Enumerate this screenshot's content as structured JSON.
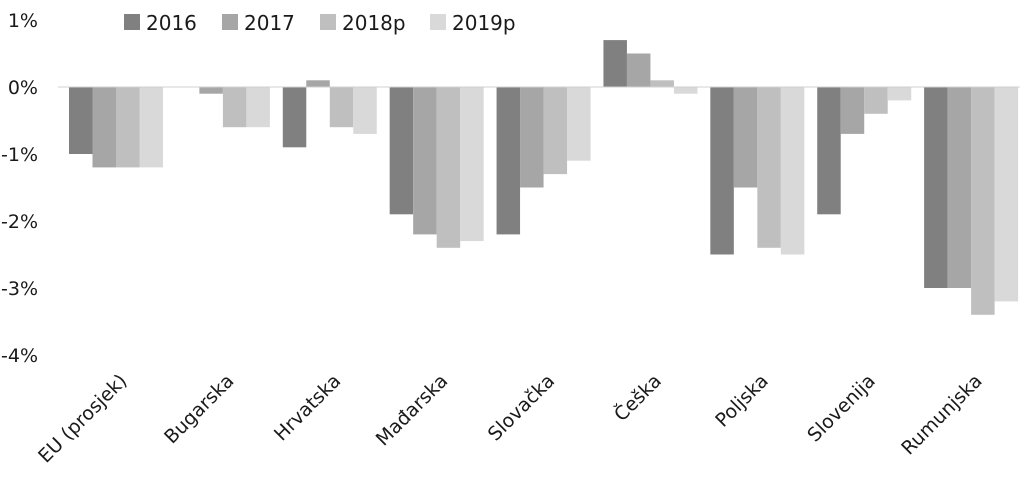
{
  "chart_data": {
    "type": "bar",
    "categories": [
      "EU (prosjek)",
      "Bugarska",
      "Hrvatska",
      "Mađarska",
      "Slovačka",
      "Češka",
      "Poljska",
      "Slovenija",
      "Rumunjska"
    ],
    "series": [
      {
        "name": "2016",
        "color": "#808080",
        "values": [
          -1.0,
          0.0,
          -0.9,
          -1.9,
          -2.2,
          0.7,
          -2.5,
          -1.9,
          -3.0
        ]
      },
      {
        "name": "2017",
        "color": "#a6a6a6",
        "values": [
          -1.2,
          -0.1,
          0.1,
          -2.2,
          -1.5,
          0.5,
          -1.5,
          -0.7,
          -3.0
        ]
      },
      {
        "name": "2018p",
        "color": "#bfbfbf",
        "values": [
          -1.2,
          -0.6,
          -0.6,
          -2.4,
          -1.3,
          0.1,
          -2.4,
          -0.4,
          -3.4
        ]
      },
      {
        "name": "2019p",
        "color": "#d9d9d9",
        "values": [
          -1.2,
          -0.6,
          -0.7,
          -2.3,
          -1.1,
          -0.1,
          -2.5,
          -0.2,
          -3.2
        ]
      }
    ],
    "yticks": [
      "1%",
      "0%",
      "-1%",
      "-2%",
      "-3%",
      "-4%"
    ],
    "ylim": [
      -4,
      1
    ],
    "grid": false,
    "legend": "top-left",
    "title": "",
    "xlabel": "",
    "ylabel": ""
  }
}
